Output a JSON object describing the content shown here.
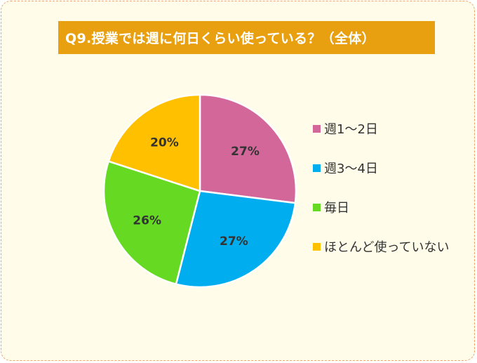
{
  "title": "Q9.授業では週に何日くらい使っている？（全体）",
  "colors": {
    "background": "#fffdea",
    "border": "#f2a46a",
    "title_bg": "#e8a010",
    "title_text": "#ffffff"
  },
  "chart_data": {
    "type": "pie",
    "title": "Q9.授業では週に何日くらい使っている？（全体）",
    "legend_position": "right",
    "start": "12 o'clock, clockwise",
    "slices": [
      {
        "label": "週1～2日",
        "value": 27,
        "display": "27%",
        "color": "#d4679a"
      },
      {
        "label": "週3～4日",
        "value": 27,
        "display": "27%",
        "color": "#00aeef"
      },
      {
        "label": "毎日",
        "value": 26,
        "display": "26%",
        "color": "#66d922"
      },
      {
        "label": "ほとんど使っていない",
        "value": 20,
        "display": "20%",
        "color": "#ffc000"
      }
    ]
  }
}
